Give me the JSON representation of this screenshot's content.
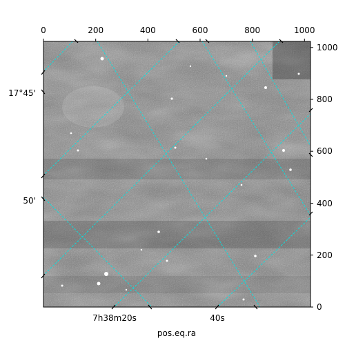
{
  "chart_data": {
    "type": "image",
    "colormap": "grayscale",
    "pixel_x": {
      "range": [
        0,
        1023
      ],
      "ticks": [
        0,
        200,
        400,
        600,
        800,
        1000
      ],
      "tick_labels": [
        "0",
        "200",
        "400",
        "600",
        "800",
        "1000"
      ],
      "position": "top"
    },
    "pixel_y": {
      "range": [
        0,
        1023
      ],
      "ticks": [
        0,
        200,
        400,
        600,
        800,
        1000
      ],
      "tick_labels": [
        "0",
        "200",
        "400",
        "600",
        "800",
        "1000"
      ],
      "position": "right"
    },
    "ra_axis": {
      "label": "pos.eq.ra",
      "tick_labels": [
        "7h38m20s",
        "40s"
      ],
      "position": "bottom"
    },
    "dec_axis": {
      "label": "",
      "tick_labels": [
        "17°45'",
        "50'"
      ],
      "position": "left"
    },
    "grid": true,
    "grid_color": "#00e5e5",
    "image_dominant_color": "#7a7a7a"
  }
}
